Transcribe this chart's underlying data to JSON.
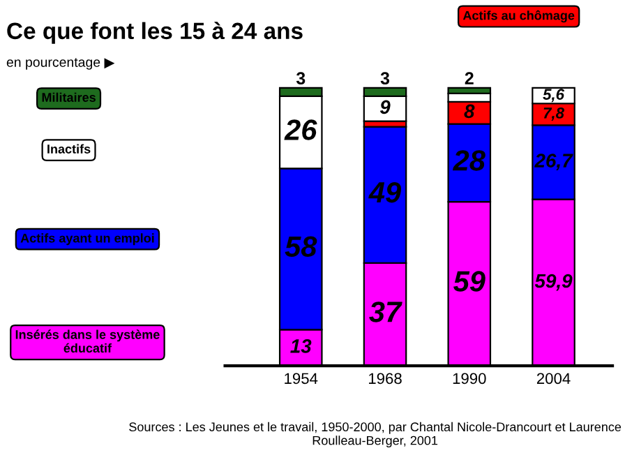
{
  "chart_data": {
    "type": "bar",
    "stacked": true,
    "title": "Ce que font les 15 à 24 ans",
    "subtitle": "en pourcentage ▶",
    "categories": [
      "1954",
      "1968",
      "1990",
      "2004"
    ],
    "series": [
      {
        "name": "Insérés dans le système éducatif",
        "color": "#ff00ff",
        "values": [
          13,
          37,
          59,
          59.9
        ],
        "value_labels": [
          "13",
          "37",
          "59",
          "59,9"
        ]
      },
      {
        "name": "Actifs ayant un emploi",
        "color": "#0000ff",
        "values": [
          58,
          49,
          28,
          26.7
        ],
        "value_labels": [
          "58",
          "49",
          "28",
          "26,7"
        ]
      },
      {
        "name": "Actifs au chômage",
        "color": "#ff0000",
        "values": [
          0,
          2,
          8,
          7.8
        ],
        "value_labels": [
          null,
          null,
          "8",
          "7,8"
        ]
      },
      {
        "name": "Inactifs",
        "color": "#ffffff",
        "values": [
          26,
          9,
          3,
          5.6
        ],
        "value_labels": [
          "26",
          "9",
          null,
          "5,6"
        ]
      },
      {
        "name": "Militaires",
        "color": "#1e6b1e",
        "values": [
          3,
          3,
          2,
          0
        ],
        "value_labels": [
          "3",
          "3",
          "2",
          null
        ]
      }
    ],
    "annotations": [
      "Sources : Les Jeunes et le travail, 1950-2000, par Chantal Nicole-Drancourt et Laurence Roulleau-Berger, 2001"
    ]
  }
}
